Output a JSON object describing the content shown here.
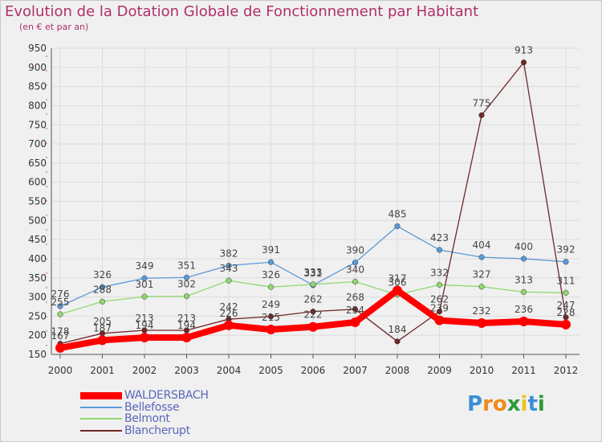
{
  "header": {
    "title": "Evolution de la Dotation Globale de Fonctionnement par Habitant",
    "subtitle": "(en € et par an)"
  },
  "logo": {
    "text": "Proxiti",
    "letters": [
      "P",
      "r",
      "o",
      "x",
      "i",
      "t",
      "i"
    ],
    "colors": [
      "#3a8fd8",
      "#f08a1c",
      "#f08a1c",
      "#2a9a3a",
      "#f0c020",
      "#3a8fd8",
      "#2a9a3a"
    ]
  },
  "legend": {
    "items": [
      {
        "label": "WALDERSBACH"
      },
      {
        "label": "Bellefosse"
      },
      {
        "label": "Belmont"
      },
      {
        "label": "Blancherupt"
      }
    ]
  },
  "chart_data": {
    "type": "line",
    "title": "Evolution de la Dotation Globale de Fonctionnement par Habitant",
    "subtitle": "(en € et par an)",
    "x": [
      "2000",
      "2001",
      "2002",
      "2003",
      "2004",
      "2005",
      "2006",
      "2007",
      "2008",
      "2009",
      "2010",
      "2011",
      "2012"
    ],
    "y_ticks": [
      150,
      200,
      250,
      300,
      350,
      400,
      450,
      500,
      550,
      600,
      650,
      700,
      750,
      800,
      850,
      900,
      950
    ],
    "ylim": [
      150,
      950
    ],
    "grid": true,
    "legend_position": "bottom-left",
    "series": [
      {
        "name": "WALDERSBACH",
        "color": "#ff0000",
        "values": [
          167,
          187,
          194,
          194,
          226,
          215,
          222,
          234,
          317,
          239,
          232,
          236,
          228
        ],
        "labels": [
          "167",
          "187",
          "194",
          "194",
          "226",
          "215",
          "222",
          "234",
          "317",
          "239",
          "232",
          "236",
          "228"
        ]
      },
      {
        "name": "Bellefosse",
        "color": "#5a9ad8",
        "values": [
          276,
          326,
          349,
          351,
          382,
          391,
          331,
          390,
          485,
          423,
          404,
          400,
          392
        ],
        "labels": [
          "276",
          "326",
          "349",
          "351",
          "382",
          "391",
          "331",
          "390",
          "485",
          "423",
          "404",
          "400",
          "392"
        ]
      },
      {
        "name": "Belmont",
        "color": "#90d870",
        "values": [
          255,
          288,
          301,
          302,
          343,
          326,
          333,
          340,
          306,
          332,
          327,
          313,
          311
        ],
        "labels": [
          "255",
          "288",
          "301",
          "302",
          "343",
          "326",
          "333",
          "340",
          "306",
          "332",
          "327",
          "313",
          "311"
        ]
      },
      {
        "name": "Blancherupt",
        "color": "#702828",
        "values": [
          178,
          205,
          213,
          213,
          242,
          249,
          262,
          268,
          184,
          262,
          775,
          913,
          247
        ],
        "labels": [
          "178",
          "205",
          "213",
          "213",
          "242",
          "249",
          "262",
          "268",
          "184",
          "262",
          "775",
          "913",
          "247"
        ]
      }
    ]
  }
}
